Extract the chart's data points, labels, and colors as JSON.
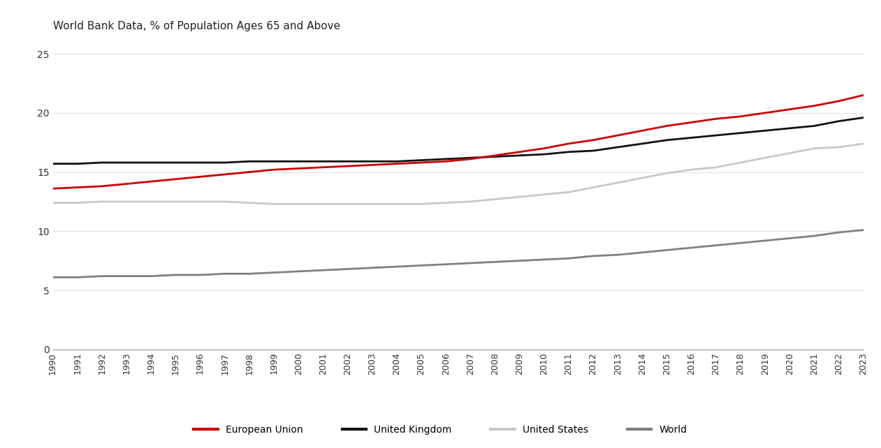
{
  "title": "World Bank Data, % of Population Ages 65 and Above",
  "years": [
    1990,
    1991,
    1992,
    1993,
    1994,
    1995,
    1996,
    1997,
    1998,
    1999,
    2000,
    2001,
    2002,
    2003,
    2004,
    2005,
    2006,
    2007,
    2008,
    2009,
    2010,
    2011,
    2012,
    2013,
    2014,
    2015,
    2016,
    2017,
    2018,
    2019,
    2020,
    2021,
    2022,
    2023
  ],
  "european_union": [
    13.6,
    13.7,
    13.8,
    14.0,
    14.2,
    14.4,
    14.6,
    14.8,
    15.0,
    15.2,
    15.3,
    15.4,
    15.5,
    15.6,
    15.7,
    15.8,
    15.9,
    16.1,
    16.4,
    16.7,
    17.0,
    17.4,
    17.7,
    18.1,
    18.5,
    18.9,
    19.2,
    19.5,
    19.7,
    20.0,
    20.3,
    20.6,
    21.0,
    21.5
  ],
  "united_kingdom": [
    15.7,
    15.7,
    15.8,
    15.8,
    15.8,
    15.8,
    15.8,
    15.8,
    15.9,
    15.9,
    15.9,
    15.9,
    15.9,
    15.9,
    15.9,
    16.0,
    16.1,
    16.2,
    16.3,
    16.4,
    16.5,
    16.7,
    16.8,
    17.1,
    17.4,
    17.7,
    17.9,
    18.1,
    18.3,
    18.5,
    18.7,
    18.9,
    19.3,
    19.6
  ],
  "united_states": [
    12.4,
    12.4,
    12.5,
    12.5,
    12.5,
    12.5,
    12.5,
    12.5,
    12.4,
    12.3,
    12.3,
    12.3,
    12.3,
    12.3,
    12.3,
    12.3,
    12.4,
    12.5,
    12.7,
    12.9,
    13.1,
    13.3,
    13.7,
    14.1,
    14.5,
    14.9,
    15.2,
    15.4,
    15.8,
    16.2,
    16.6,
    17.0,
    17.1,
    17.4
  ],
  "world": [
    6.1,
    6.1,
    6.2,
    6.2,
    6.2,
    6.3,
    6.3,
    6.4,
    6.4,
    6.5,
    6.6,
    6.7,
    6.8,
    6.9,
    7.0,
    7.1,
    7.2,
    7.3,
    7.4,
    7.5,
    7.6,
    7.7,
    7.9,
    8.0,
    8.2,
    8.4,
    8.6,
    8.8,
    9.0,
    9.2,
    9.4,
    9.6,
    9.9,
    10.1
  ],
  "eu_color": "#cc0000",
  "uk_color": "#111111",
  "us_color": "#c8c8c8",
  "world_color": "#808080",
  "line_width": 2.0,
  "ylim": [
    0,
    25
  ],
  "yticks": [
    0,
    5,
    10,
    15,
    20,
    25
  ],
  "bg_color": "#ffffff",
  "legend_items": [
    "European Union",
    "United Kingdom",
    "United States",
    "World"
  ]
}
